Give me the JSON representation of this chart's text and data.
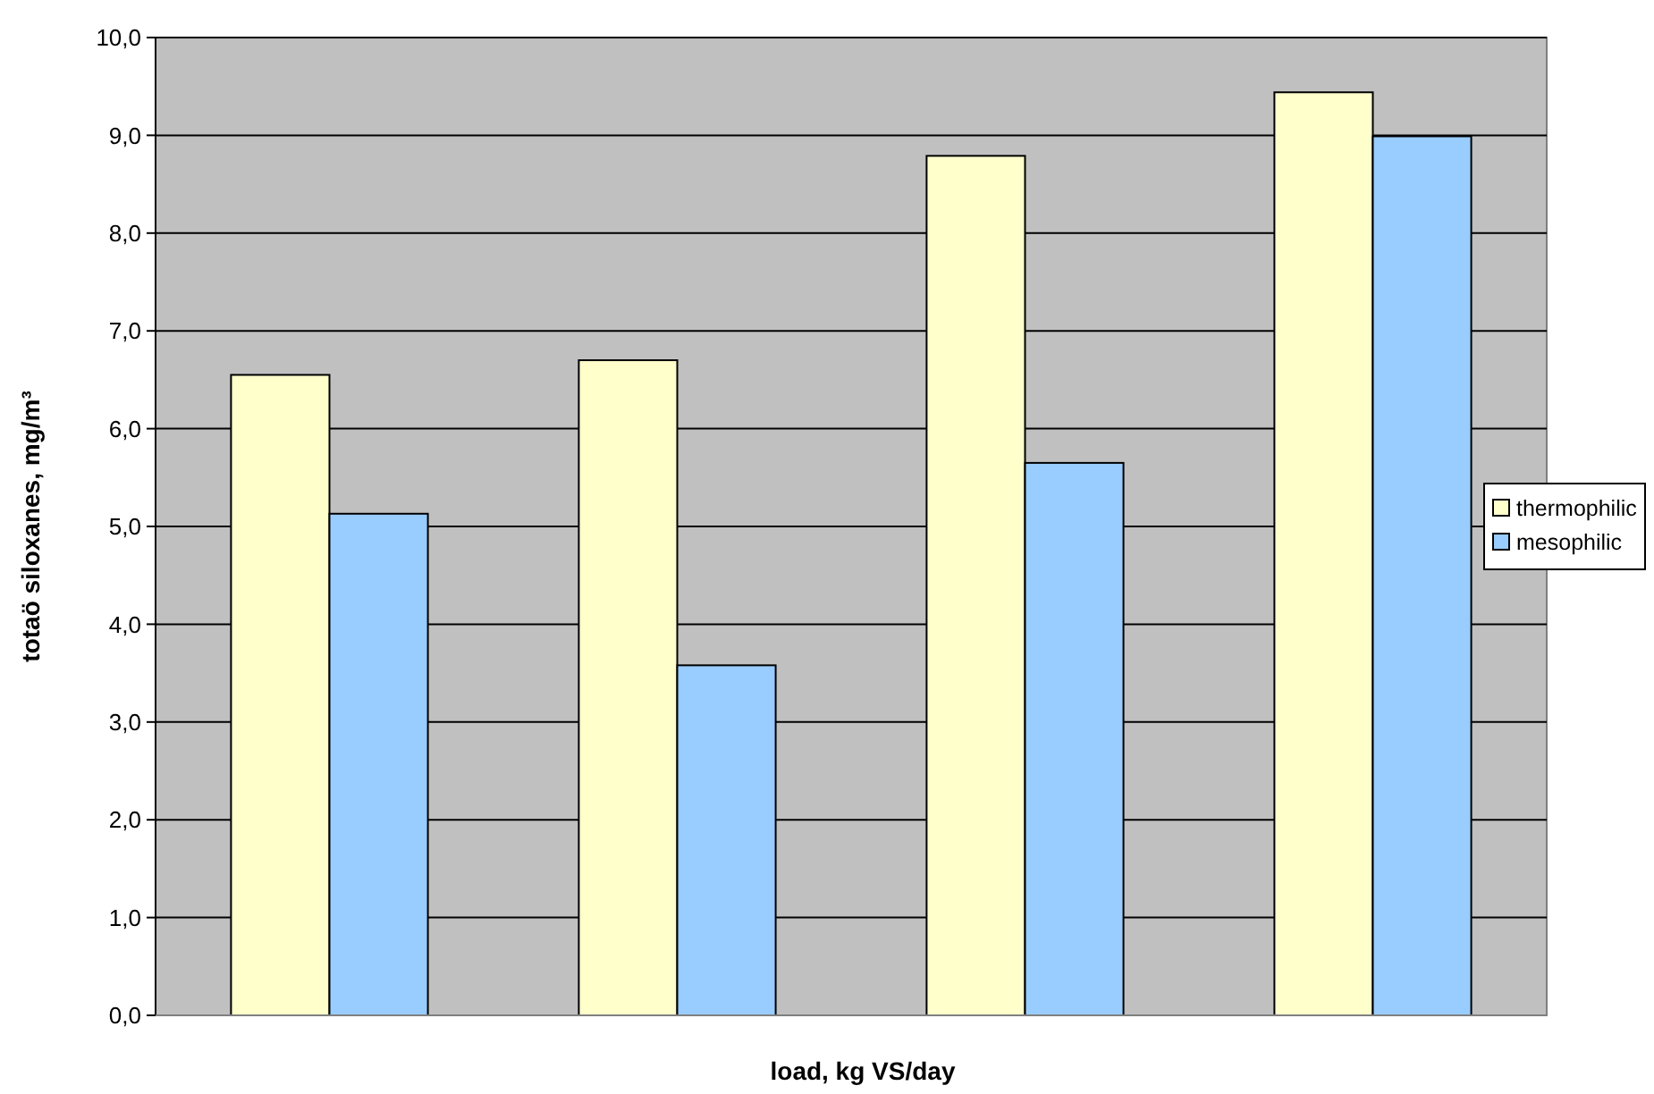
{
  "chart_data": {
    "type": "bar",
    "xlabel": "load, kg VS/day",
    "ylabel": "totaö siloxanes, mg/m³",
    "categories": [
      null,
      null,
      null,
      null
    ],
    "series": [
      {
        "name": "thermophilic",
        "color": "#ffffcc",
        "values": [
          6.55,
          6.7,
          8.79,
          9.44
        ]
      },
      {
        "name": "mesophilic",
        "color": "#99ccff",
        "values": [
          5.13,
          3.58,
          5.65,
          8.99
        ]
      }
    ],
    "ylim": [
      0,
      10
    ],
    "yticks": [
      {
        "value": 0,
        "label": "0,0"
      },
      {
        "value": 1,
        "label": "1,0"
      },
      {
        "value": 2,
        "label": "2,0"
      },
      {
        "value": 3,
        "label": "3,0"
      },
      {
        "value": 4,
        "label": "4,0"
      },
      {
        "value": 5,
        "label": "5,0"
      },
      {
        "value": 6,
        "label": "6,0"
      },
      {
        "value": 7,
        "label": "7,0"
      },
      {
        "value": 8,
        "label": "8,0"
      },
      {
        "value": 9,
        "label": "9,0"
      },
      {
        "value": 10,
        "label": "10,0"
      }
    ],
    "grid": "y",
    "legend": "right"
  }
}
